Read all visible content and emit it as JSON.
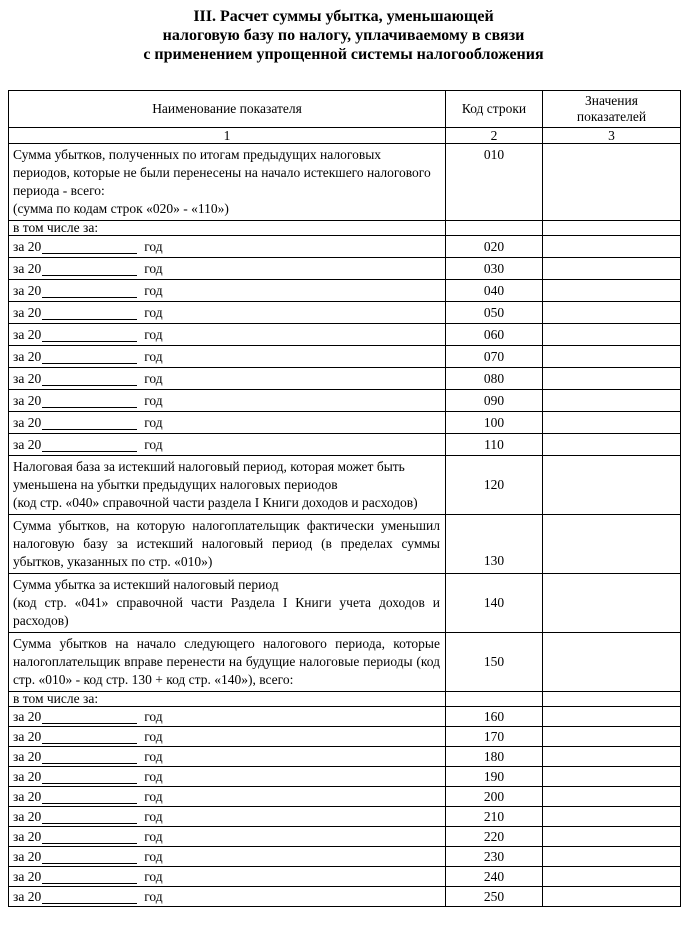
{
  "page": {
    "title_lines": [
      "III. Расчет суммы убытка, уменьшающей",
      "налоговую базу по налогу, уплачиваемому в связи",
      "с применением упрощенной системы налогообложения"
    ]
  },
  "table": {
    "header": {
      "name": "Наименование показателя",
      "code": "Код строки",
      "value": "Значения показателей"
    },
    "column_numbers": [
      "1",
      "2",
      "3"
    ],
    "rows": [
      {
        "kind": "desc",
        "lines": [
          "Сумма убытков, полученных по итогам предыдущих налоговых периодов, которые не были перенесены на начало истекшего налогового периода - всего:",
          "(сумма по кодам строк «020» - «110»)"
        ],
        "code": "010",
        "code_valign": "top",
        "value": ""
      },
      {
        "kind": "subheader",
        "label": "в том числе за:",
        "value": ""
      },
      {
        "kind": "year",
        "prefix": "за 20",
        "suffix": "год",
        "code": "020",
        "value": ""
      },
      {
        "kind": "year",
        "prefix": "за 20",
        "suffix": "год",
        "code": "030",
        "value": ""
      },
      {
        "kind": "year",
        "prefix": "за 20",
        "suffix": "год",
        "code": "040",
        "value": ""
      },
      {
        "kind": "year",
        "prefix": "за 20",
        "suffix": "год",
        "code": "050",
        "value": ""
      },
      {
        "kind": "year",
        "prefix": "за 20",
        "suffix": "год",
        "code": "060",
        "value": ""
      },
      {
        "kind": "year",
        "prefix": "за 20",
        "suffix": "год",
        "code": "070",
        "value": ""
      },
      {
        "kind": "year",
        "prefix": "за 20",
        "suffix": "год",
        "code": "080",
        "value": ""
      },
      {
        "kind": "year",
        "prefix": "за 20",
        "suffix": "год",
        "code": "090",
        "value": ""
      },
      {
        "kind": "year",
        "prefix": "за 20",
        "suffix": "год",
        "code": "100",
        "value": ""
      },
      {
        "kind": "year",
        "prefix": "за 20",
        "suffix": "год",
        "code": "110",
        "value": ""
      },
      {
        "kind": "desc",
        "lines": [
          "Налоговая база за истекший налоговый период, которая может быть уменьшена на убытки предыдущих налоговых периодов",
          "(код стр. «040» справочной части раздела I Книги доходов и расходов)"
        ],
        "code": "120",
        "code_valign": "middle",
        "value": ""
      },
      {
        "kind": "desc",
        "justify": true,
        "lines": [
          "Сумма убытков, на которую налогоплательщик фактически уменьшил налоговую базу за истекший налоговый период (в пределах суммы убытков, указанных по стр. «010»)"
        ],
        "code": "130",
        "code_valign": "bottom",
        "value": ""
      },
      {
        "kind": "desc",
        "justify": true,
        "lines": [
          "Сумма убытка за истекший налоговый период",
          "(код стр. «041» справочной части Раздела I Книги учета доходов и расходов)"
        ],
        "code": "140",
        "code_valign": "middle",
        "value": ""
      },
      {
        "kind": "desc",
        "justify": true,
        "lines": [
          "Сумма убытков на начало следующего налогового периода, которые налогоплательщик вправе перенести на будущие налоговые периоды (код стр. «010» - код стр. 130 + код стр. «140»),  всего:"
        ],
        "code": "150",
        "code_valign": "middle",
        "value": ""
      },
      {
        "kind": "subheader",
        "label": "в том числе за:",
        "value": ""
      },
      {
        "kind": "year",
        "compact": true,
        "prefix": "за 20",
        "suffix": "год",
        "code": "160",
        "value": ""
      },
      {
        "kind": "year",
        "compact": true,
        "prefix": "за 20",
        "suffix": "год",
        "code": "170",
        "value": ""
      },
      {
        "kind": "year",
        "compact": true,
        "prefix": "за 20",
        "suffix": "год",
        "code": "180",
        "value": ""
      },
      {
        "kind": "year",
        "compact": true,
        "prefix": "за 20",
        "suffix": "год",
        "code": "190",
        "value": ""
      },
      {
        "kind": "year",
        "compact": true,
        "prefix": "за 20",
        "suffix": "год",
        "code": "200",
        "value": ""
      },
      {
        "kind": "year",
        "compact": true,
        "prefix": "за 20",
        "suffix": "год",
        "code": "210",
        "value": ""
      },
      {
        "kind": "year",
        "compact": true,
        "prefix": "за 20",
        "suffix": "год",
        "code": "220",
        "value": ""
      },
      {
        "kind": "year",
        "compact": true,
        "prefix": "за 20",
        "suffix": "год",
        "code": "230",
        "value": ""
      },
      {
        "kind": "year",
        "compact": true,
        "prefix": "за 20",
        "suffix": "год",
        "code": "240",
        "value": ""
      },
      {
        "kind": "year",
        "compact": true,
        "prefix": "за 20",
        "suffix": "год",
        "code": "250",
        "value": ""
      }
    ]
  }
}
